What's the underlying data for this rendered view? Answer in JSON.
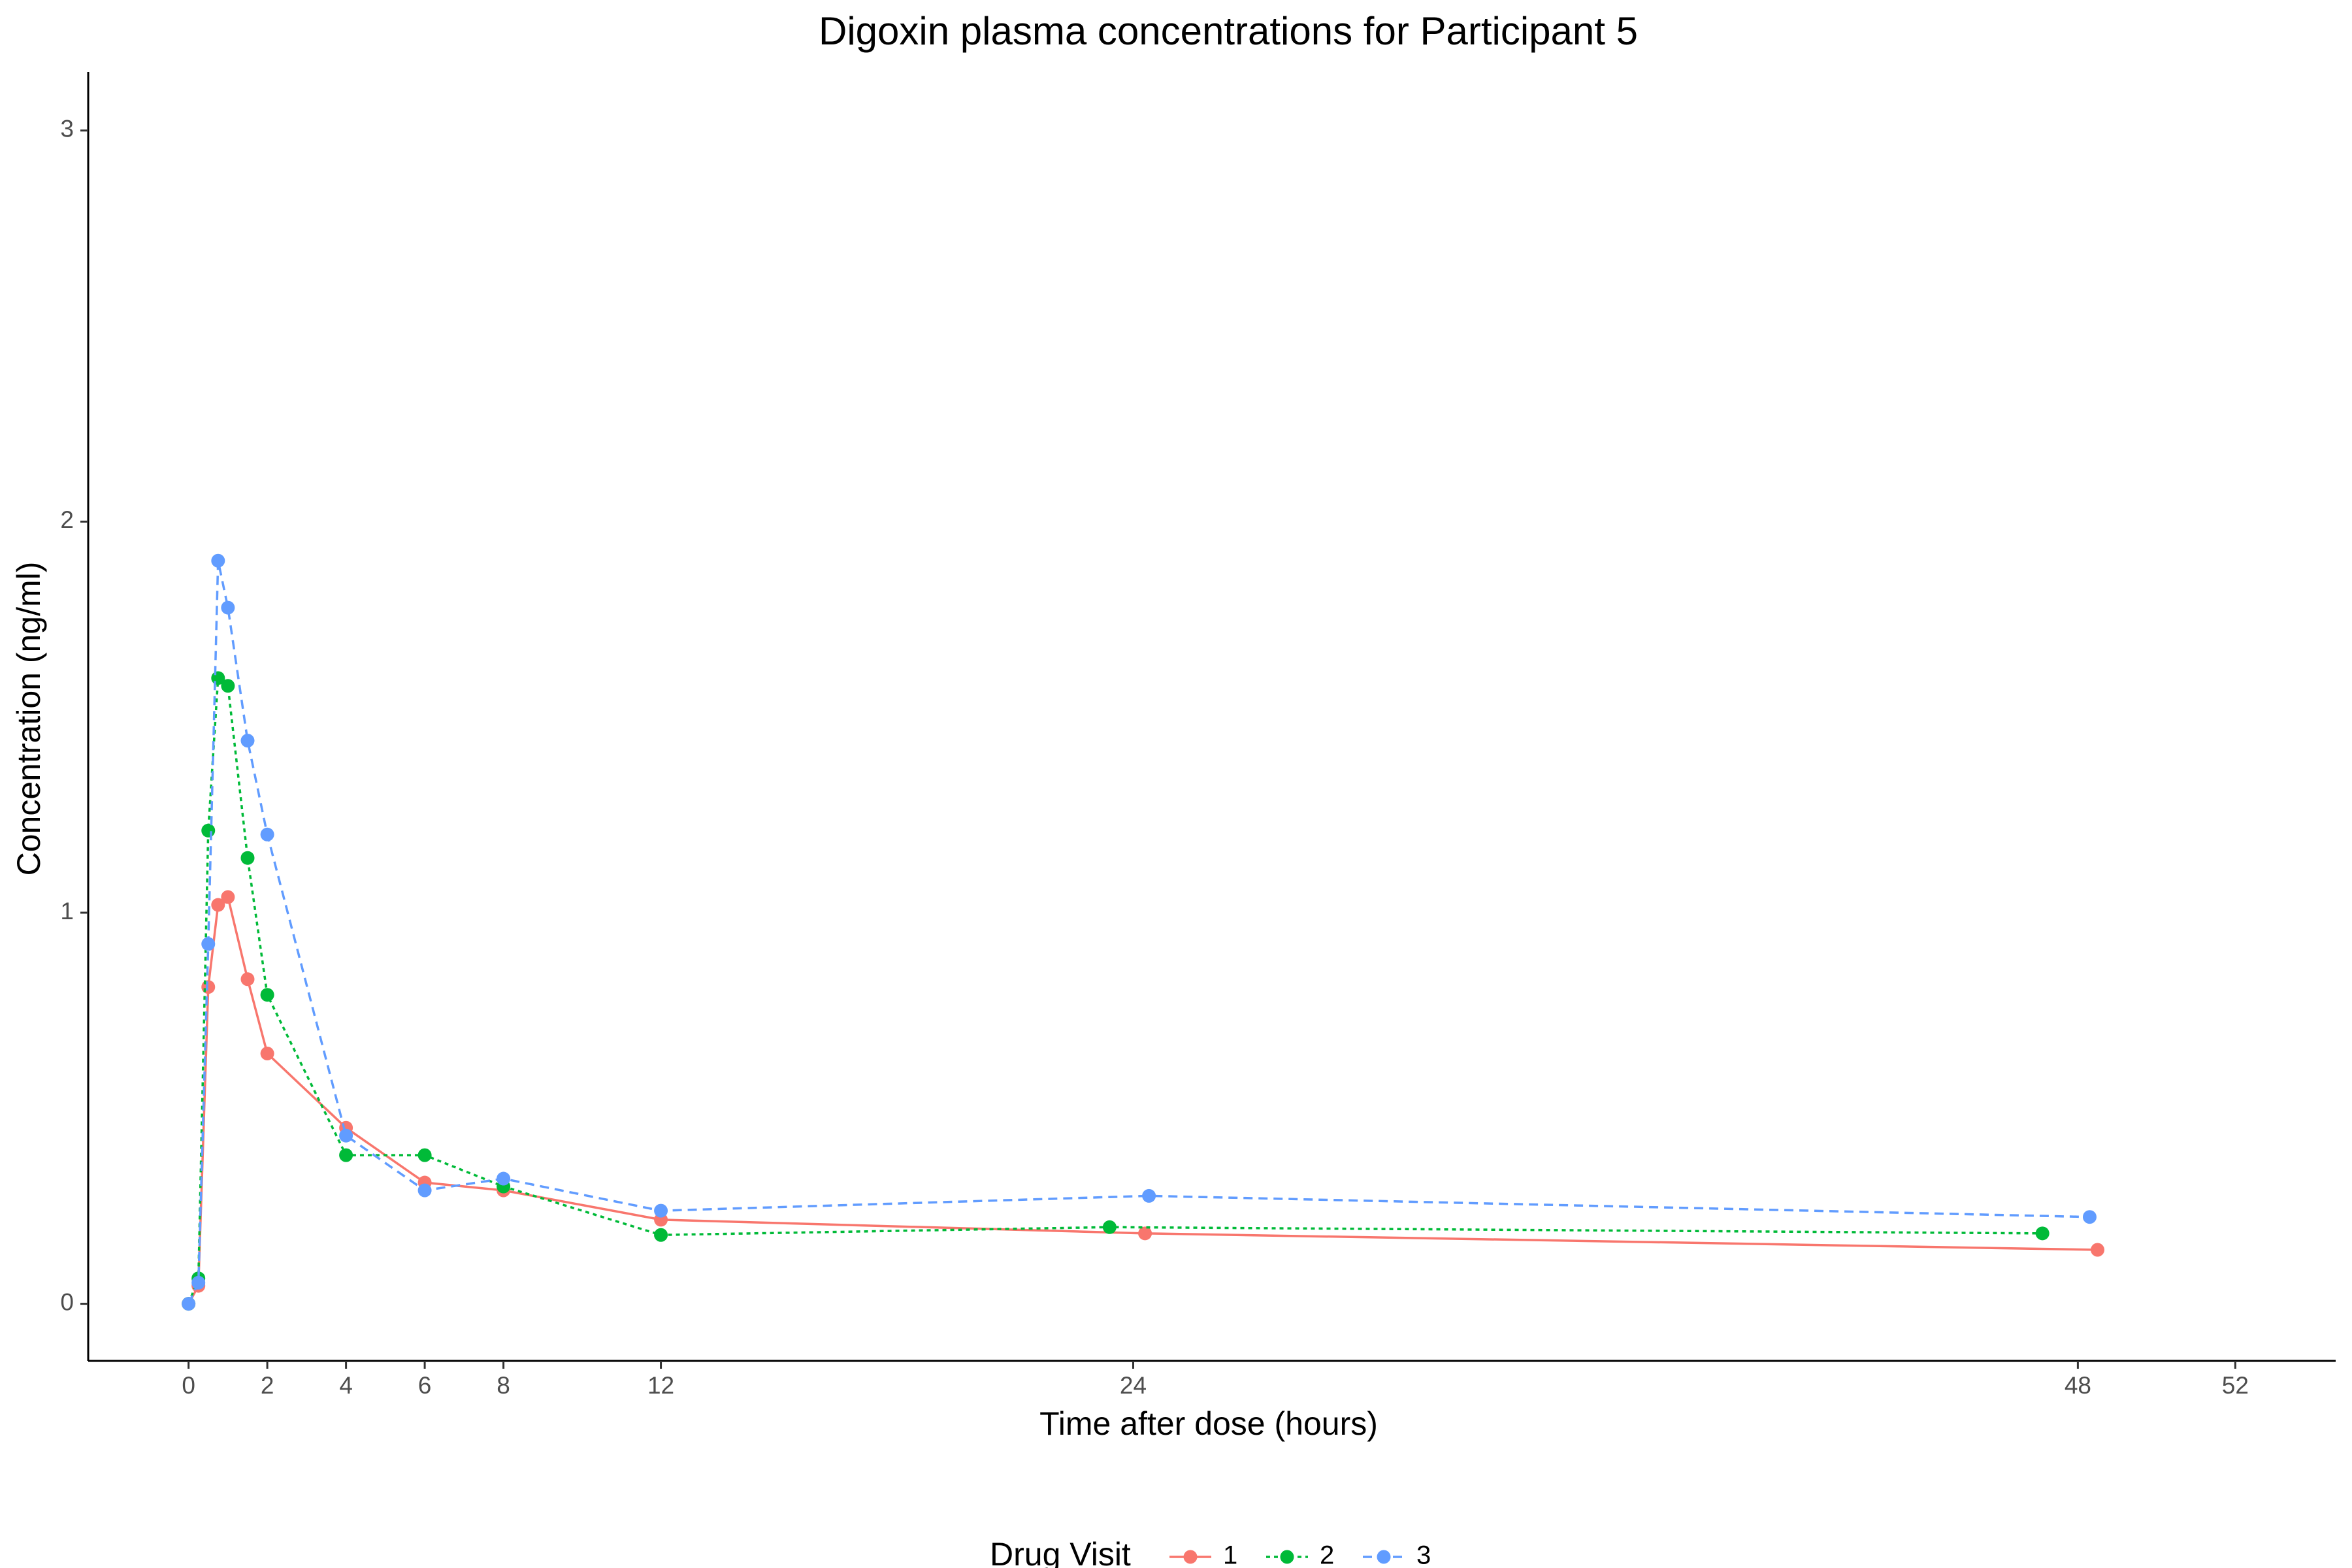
{
  "chart_data": {
    "type": "line",
    "title": "Digoxin plasma concentrations for Participant 5",
    "x_label": "Time after dose (hours)",
    "y_label": "Concentration (ng/ml)",
    "legend_title": "Drug Visit",
    "legend": "bottom",
    "grid": false,
    "xlim": [
      -2.55,
      54.55
    ],
    "xticks": [
      0,
      2,
      4,
      6,
      8,
      12,
      24,
      48,
      52
    ],
    "ylim": [
      -0.146,
      3.15
    ],
    "yticks": [
      0,
      1,
      2,
      3
    ],
    "series": [
      {
        "name": "1",
        "color": "#f8766d",
        "linetype": "solid",
        "x": [
          0,
          0.25,
          0.5,
          0.75,
          1,
          1.5,
          2,
          4,
          6,
          8,
          12,
          24.3,
          48.5
        ],
        "values": [
          0,
          0.046,
          0.81,
          1.02,
          1.04,
          0.83,
          0.64,
          0.45,
          0.31,
          0.29,
          0.215,
          0.18,
          0.138
        ]
      },
      {
        "name": "2",
        "color": "#00ba38",
        "linetype": "dotted",
        "x": [
          0,
          0.25,
          0.5,
          0.75,
          1,
          1.5,
          2,
          4,
          6,
          8,
          12,
          23.4,
          47.1
        ],
        "values": [
          0,
          0.065,
          1.21,
          1.6,
          1.58,
          1.14,
          0.79,
          0.38,
          0.38,
          0.3,
          0.176,
          0.196,
          0.18
        ]
      },
      {
        "name": "3",
        "color": "#619cff",
        "linetype": "dashed",
        "x": [
          0,
          0.25,
          0.5,
          0.75,
          1,
          1.5,
          2,
          4,
          6,
          8,
          12,
          24.4,
          48.3
        ],
        "values": [
          0,
          0.054,
          0.92,
          1.9,
          1.78,
          1.44,
          1.2,
          0.43,
          0.29,
          0.32,
          0.238,
          0.276,
          0.222
        ]
      }
    ]
  }
}
